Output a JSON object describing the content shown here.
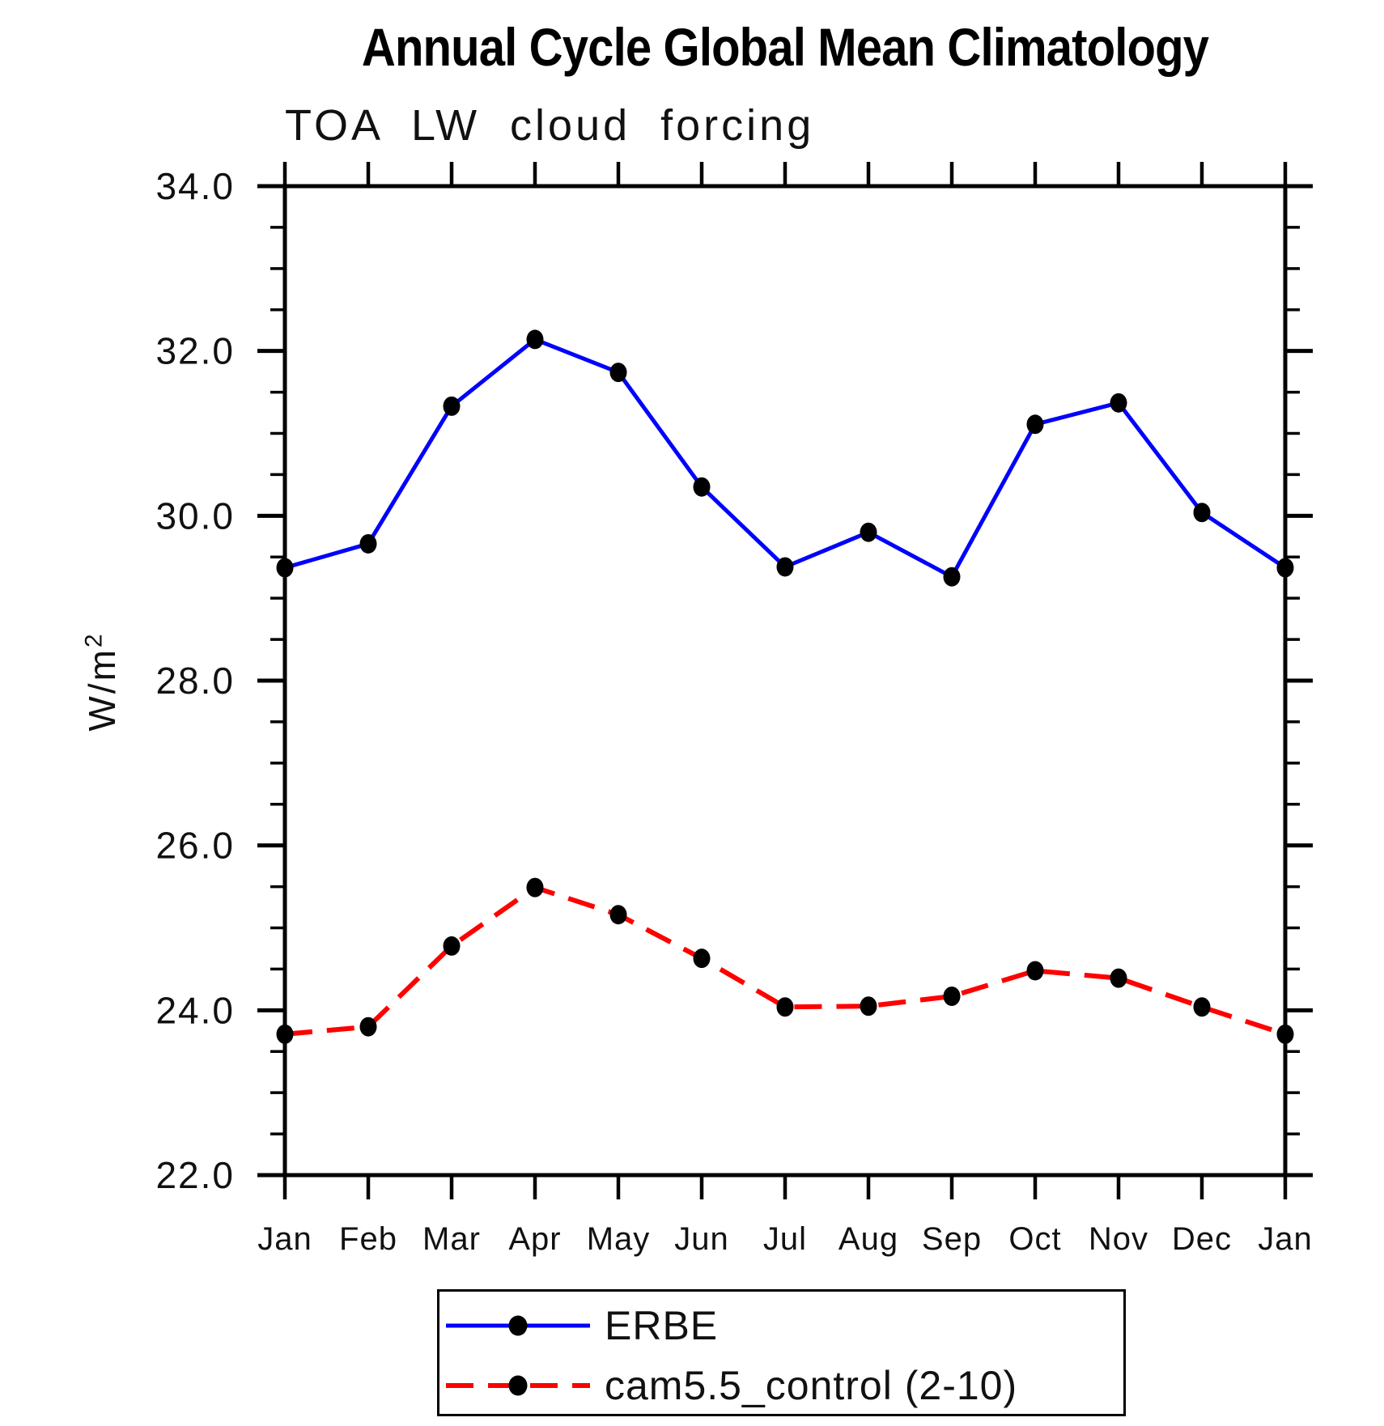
{
  "chart_data": {
    "type": "line",
    "title": "Annual Cycle Global Mean Climatology",
    "subtitle": "TOA LW cloud forcing",
    "ylabel": "W/m²",
    "ylabel_base": "W/m",
    "ylabel_exponent": "2",
    "xlabel": "",
    "categories": [
      "Jan",
      "Feb",
      "Mar",
      "Apr",
      "May",
      "Jun",
      "Jul",
      "Aug",
      "Sep",
      "Oct",
      "Nov",
      "Dec",
      "Jan"
    ],
    "ylim": [
      22.0,
      34.0
    ],
    "ytick_major_interval": 2.0,
    "ytick_minor_interval": 0.5,
    "ytick_labels": [
      "22.0",
      "24.0",
      "26.0",
      "28.0",
      "30.0",
      "32.0",
      "34.0"
    ],
    "grid": false,
    "legend_position": "bottom-center",
    "axis_color": "#000000",
    "background_color": "#ffffff",
    "series": [
      {
        "name": "ERBE",
        "color": "#0000ff",
        "line_style": "solid",
        "marker": "filled-circle",
        "marker_color": "#000000",
        "values": [
          29.37,
          29.66,
          31.33,
          32.14,
          31.74,
          30.35,
          29.38,
          29.8,
          29.26,
          31.11,
          31.37,
          30.04,
          29.37
        ]
      },
      {
        "name": "cam5.5_control (2-10)",
        "color": "#ff0000",
        "line_style": "dashed",
        "marker": "filled-circle",
        "marker_color": "#000000",
        "values": [
          23.71,
          23.8,
          24.78,
          25.49,
          25.16,
          24.63,
          24.04,
          24.05,
          24.17,
          24.48,
          24.39,
          24.04,
          23.71
        ]
      }
    ]
  }
}
